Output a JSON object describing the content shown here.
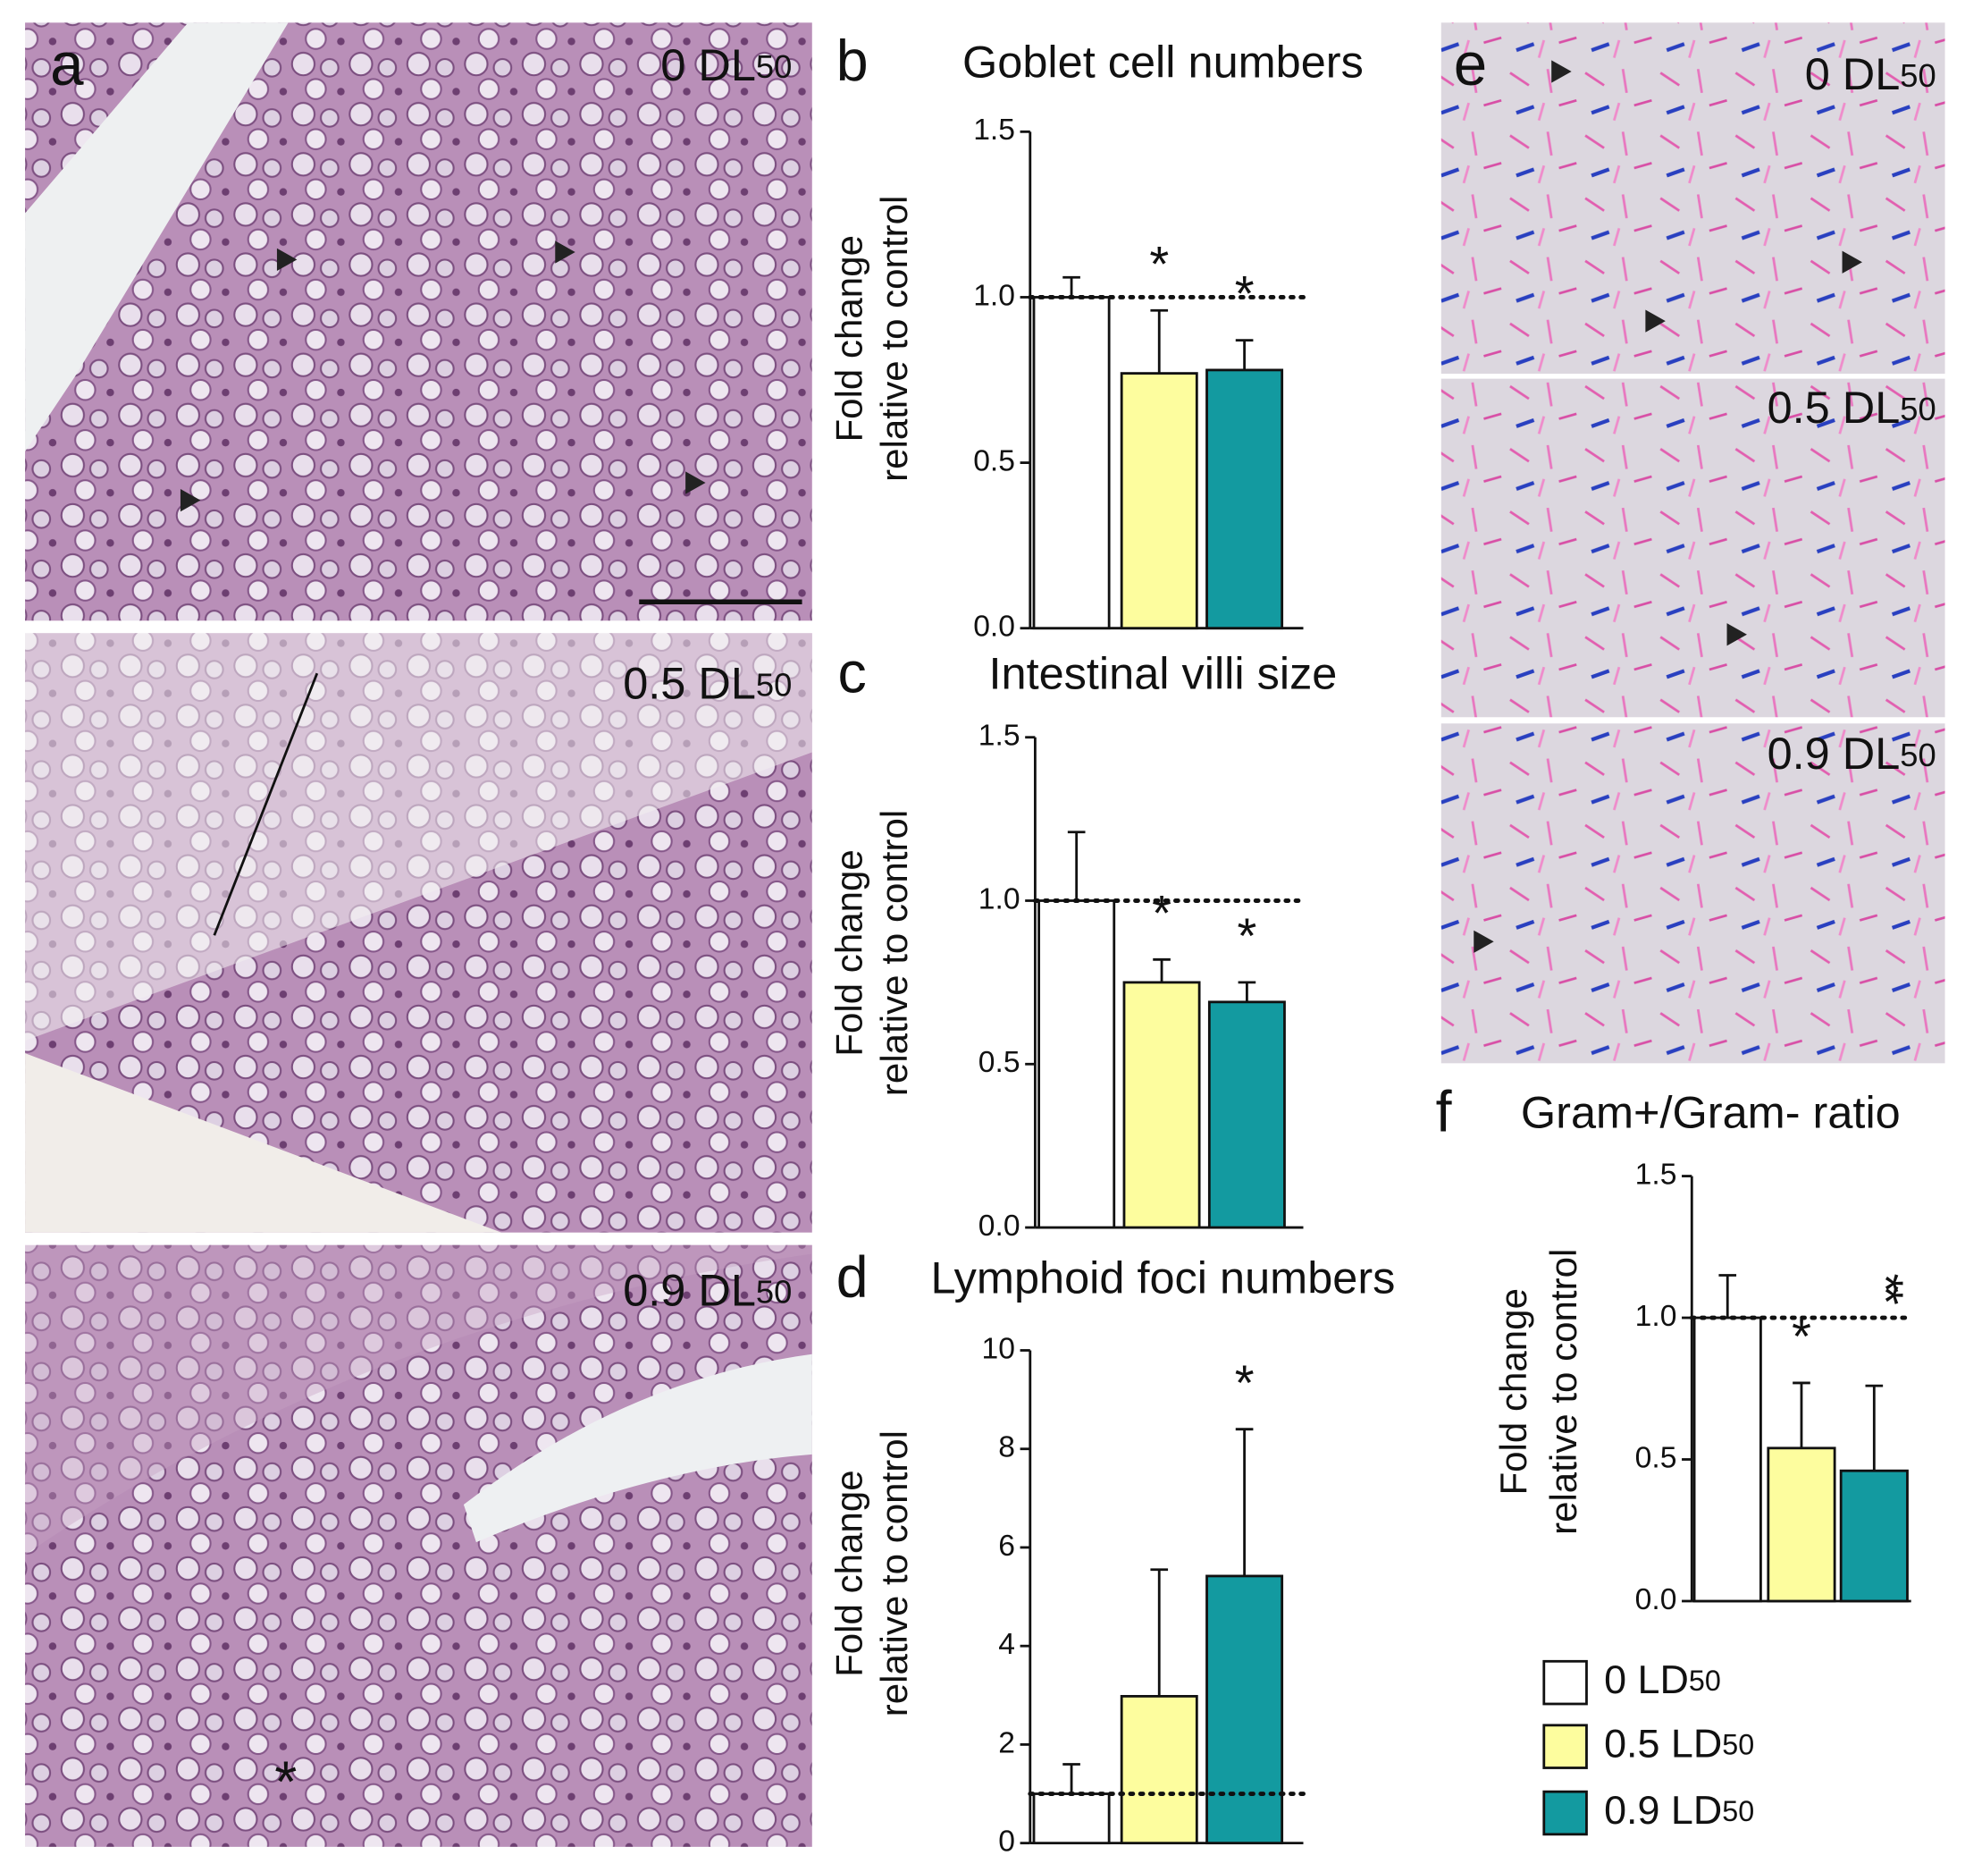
{
  "micrographs": {
    "a": {
      "panel": "a",
      "labels": [
        {
          "main": "0 DL",
          "sub": "50"
        },
        {
          "main": "0.5 DL",
          "sub": "50"
        },
        {
          "main": "0.9 DL",
          "sub": "50"
        }
      ],
      "asterisk": "*"
    },
    "e": {
      "panel": "e",
      "labels": [
        {
          "main": "0 DL",
          "sub": "50"
        },
        {
          "main": "0.5 DL",
          "sub": "50"
        },
        {
          "main": "0.9 DL",
          "sub": "50"
        }
      ]
    }
  },
  "legend": {
    "items": [
      {
        "name": {
          "main": "0 LD",
          "sub": "50"
        },
        "color": "#ffffff"
      },
      {
        "name": {
          "main": "0.5 LD",
          "sub": "50"
        },
        "color": "#fdfd9e"
      },
      {
        "name": {
          "main": "0.9 LD",
          "sub": "50"
        },
        "color": "#139aa0"
      }
    ]
  },
  "chart_data": [
    {
      "type": "bar",
      "panel": "b",
      "title": "Goblet cell numbers",
      "ylabel": [
        "Fold change",
        "relative to control"
      ],
      "values": [
        1.0,
        0.77,
        0.78
      ],
      "errors": [
        0.06,
        0.19,
        0.09
      ],
      "significance": [
        null,
        "*",
        "*"
      ],
      "reference_line": 1,
      "ylim": [
        0,
        1.5
      ],
      "yticks": [
        {
          "value": 0,
          "label": "0.0"
        },
        0.5,
        {
          "value": 1,
          "label": "1.0"
        },
        1.5
      ]
    },
    {
      "type": "bar",
      "panel": "c",
      "title": "Intestinal villi size",
      "ylabel": [
        "Fold change",
        "relative to control"
      ],
      "values": [
        1.0,
        0.75,
        0.69
      ],
      "errors": [
        0.21,
        0.07,
        0.06
      ],
      "significance": [
        null,
        "*",
        "*"
      ],
      "reference_line": 1,
      "ylim": [
        0,
        1.5
      ],
      "yticks": [
        {
          "value": 0,
          "label": "0.0"
        },
        0.5,
        {
          "value": 1,
          "label": "1.0"
        },
        1.5
      ]
    },
    {
      "type": "bar",
      "panel": "d",
      "title": "Lymphoid foci numbers",
      "ylabel": [
        "Fold change",
        "relative to control"
      ],
      "values": [
        1.0,
        2.98,
        5.42
      ],
      "errors": [
        0.6,
        2.57,
        2.98
      ],
      "significance": [
        null,
        null,
        "*"
      ],
      "reference_line": 1,
      "ylim": [
        0,
        10
      ],
      "yticks": [
        0,
        2,
        4,
        6,
        8,
        10
      ]
    },
    {
      "type": "bar",
      "panel": "f",
      "title": "Gram+/Gram- ratio",
      "ylabel": [
        "Fold change",
        "relative to control"
      ],
      "values": [
        1.0,
        0.54,
        0.46
      ],
      "errors": [
        0.15,
        0.23,
        0.3
      ],
      "significance": [
        null,
        "*",
        "**"
      ],
      "reference_line": 1,
      "ylim": [
        0,
        1.5
      ],
      "yticks": [
        {
          "value": 0,
          "label": "0.0"
        },
        0.5,
        {
          "value": 1,
          "label": "1.0"
        },
        1.5
      ]
    }
  ]
}
